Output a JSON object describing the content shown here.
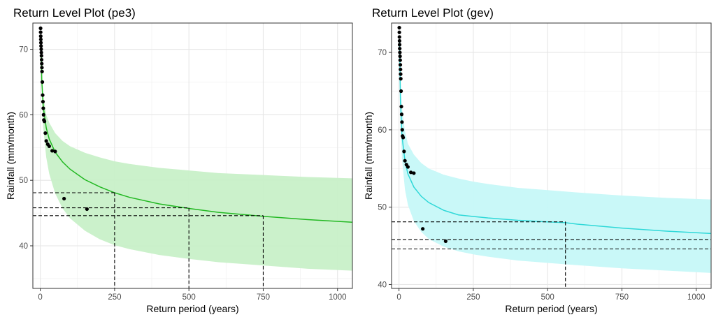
{
  "colors": {
    "pe3_line": "#22b822",
    "pe3_band": "#c8f0c8",
    "gev_line": "#2fd8d8",
    "gev_band": "#c6f8f8",
    "points": "#000000",
    "grid": "#e6e6e6"
  },
  "chart_data": [
    {
      "type": "line",
      "title": "Return Level Plot (pe3)",
      "xlabel": "Return period (years)",
      "ylabel": "Rainfall (mm/month)",
      "xlim": [
        -25,
        1050
      ],
      "ylim": [
        33.5,
        74.0
      ],
      "xticks": [
        0,
        250,
        500,
        750,
        1000
      ],
      "yticks": [
        40,
        50,
        60,
        70
      ],
      "grid": true,
      "fit_curve": {
        "x": [
          2,
          5,
          10,
          20,
          30,
          50,
          75,
          100,
          150,
          200,
          250,
          300,
          400,
          500,
          600,
          750,
          900,
          1050
        ],
        "y": [
          72.0,
          65.2,
          61.2,
          58.0,
          56.3,
          54.3,
          52.8,
          51.7,
          50.1,
          49.0,
          48.1,
          47.4,
          46.4,
          45.7,
          45.1,
          44.5,
          44.0,
          43.6
        ]
      },
      "confidence_band": {
        "x": [
          2,
          5,
          10,
          20,
          30,
          50,
          75,
          100,
          150,
          200,
          250,
          300,
          400,
          500,
          600,
          750,
          900,
          1050
        ],
        "lower": [
          71.0,
          63.0,
          58.0,
          53.5,
          51.0,
          48.0,
          45.7,
          44.2,
          42.3,
          41.0,
          40.1,
          39.5,
          38.6,
          38.0,
          37.5,
          37.0,
          36.5,
          36.2
        ],
        "upper": [
          73.0,
          67.0,
          63.0,
          60.0,
          58.8,
          57.2,
          56.0,
          55.2,
          54.2,
          53.5,
          52.9,
          52.5,
          51.9,
          51.5,
          51.1,
          50.8,
          50.5,
          50.3
        ]
      },
      "observed_points": {
        "x": [
          1.0,
          1.2,
          1.5,
          1.8,
          2.1,
          2.5,
          3.0,
          3.5,
          4.0,
          4.5,
          5.0,
          5.5,
          6.0,
          7.0,
          8.0,
          9.0,
          10.0,
          11.0,
          12.0,
          14.0,
          17.0,
          20.0,
          25.0,
          30.0,
          40.0,
          50.0,
          80.0,
          157.0
        ],
        "y": [
          73.2,
          72.6,
          72.0,
          71.5,
          71.0,
          70.5,
          70.0,
          69.5,
          69.0,
          68.4,
          67.8,
          67.2,
          66.6,
          65.0,
          63.0,
          62.0,
          61.0,
          60.0,
          59.2,
          59.0,
          57.2,
          56.0,
          55.5,
          55.2,
          54.5,
          54.4,
          47.2,
          45.6
        ]
      },
      "reference_lines": [
        {
          "return_period": 250,
          "level": 48.1
        },
        {
          "return_period": 500,
          "level": 45.8
        },
        {
          "return_period": 750,
          "level": 44.6
        }
      ]
    },
    {
      "type": "line",
      "title": "Return Level Plot (gev)",
      "xlabel": "Return period (years)",
      "ylabel": "Rainfall (mm/month)",
      "xlim": [
        -25,
        1050
      ],
      "ylim": [
        39.5,
        73.8
      ],
      "xticks": [
        0,
        250,
        500,
        750,
        1000
      ],
      "yticks": [
        40,
        50,
        60,
        70
      ],
      "grid": true,
      "fit_curve": {
        "x": [
          2,
          5,
          10,
          20,
          30,
          50,
          75,
          100,
          150,
          200,
          250,
          300,
          400,
          500,
          560,
          600,
          750,
          900,
          1050
        ],
        "y": [
          71.5,
          63.5,
          59.2,
          56.0,
          54.3,
          52.6,
          51.4,
          50.6,
          49.6,
          49.0,
          48.8,
          48.6,
          48.3,
          48.1,
          48.0,
          47.8,
          47.3,
          46.9,
          46.6
        ]
      },
      "confidence_band": {
        "x": [
          2,
          5,
          10,
          20,
          30,
          50,
          75,
          100,
          150,
          200,
          250,
          300,
          400,
          500,
          600,
          750,
          900,
          1050
        ],
        "lower": [
          70.5,
          61.0,
          56.3,
          52.3,
          50.3,
          48.2,
          46.8,
          45.9,
          44.9,
          44.3,
          43.9,
          43.6,
          43.1,
          42.8,
          42.5,
          42.1,
          41.8,
          41.5
        ],
        "upper": [
          72.5,
          66.5,
          62.8,
          59.8,
          58.2,
          56.8,
          55.7,
          55.0,
          54.2,
          53.7,
          53.3,
          53.0,
          52.5,
          52.2,
          51.9,
          51.5,
          51.2,
          51.0
        ]
      },
      "observed_points": {
        "x": [
          1.0,
          1.2,
          1.5,
          1.8,
          2.1,
          2.5,
          3.0,
          3.5,
          4.0,
          4.5,
          5.0,
          5.5,
          6.0,
          7.0,
          8.0,
          9.0,
          10.0,
          11.0,
          12.0,
          14.0,
          17.0,
          20.0,
          25.0,
          30.0,
          40.0,
          50.0,
          80.0,
          157.0
        ],
        "y": [
          73.2,
          72.6,
          72.0,
          71.5,
          71.0,
          70.5,
          70.0,
          69.5,
          69.0,
          68.4,
          67.8,
          67.2,
          66.6,
          65.0,
          63.0,
          62.0,
          61.0,
          60.0,
          59.2,
          59.0,
          57.2,
          56.0,
          55.5,
          55.2,
          54.5,
          54.4,
          47.2,
          45.6
        ]
      },
      "reference_lines": [
        {
          "return_period": 560,
          "level": 48.1
        },
        {
          "return_period": null,
          "level": 45.8
        },
        {
          "return_period": null,
          "level": 44.6
        }
      ]
    }
  ]
}
